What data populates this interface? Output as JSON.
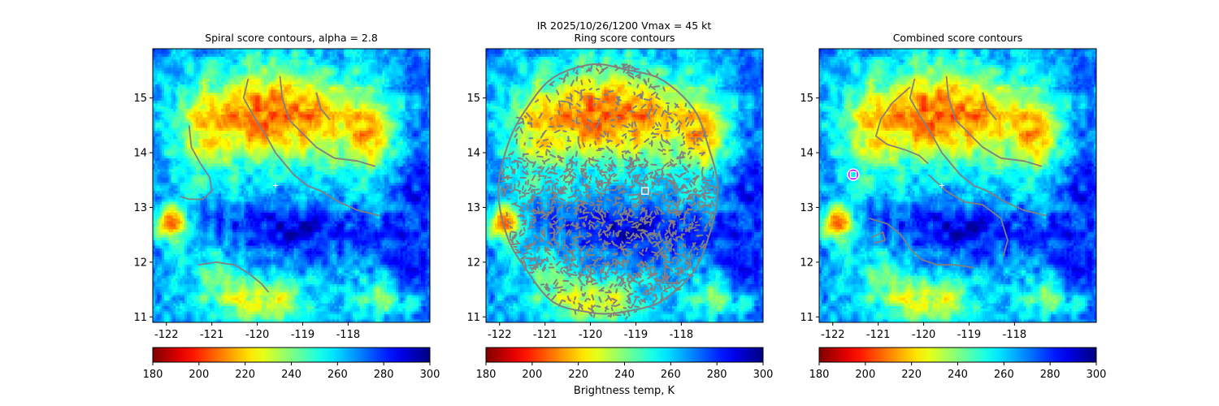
{
  "suptitle": {
    "line1": "IR  2025/10/26/1200    Vmax = 45 kt"
  },
  "colorbar_label": "Brightness temp, K",
  "colors": {
    "contour": "#808080",
    "marker": "#ffffff",
    "marker_ring": "#ff00ff"
  },
  "colormap": {
    "name": "jet_r",
    "vmin": 180,
    "vmax": 300
  },
  "chart_data": [
    {
      "type": "heatmap",
      "title": "Spiral score contours, alpha =  2.8",
      "xlim": [
        -122.3,
        -116.2
      ],
      "ylim": [
        10.9,
        15.9
      ],
      "xticks": [
        "-122",
        "-121",
        "-120",
        "-119",
        "-118"
      ],
      "xtick_values": [
        -122,
        -121,
        -120,
        -119,
        -118
      ],
      "yticks": [
        "11",
        "12",
        "13",
        "14",
        "15"
      ],
      "ytick_values": [
        11,
        12,
        13,
        14,
        15
      ],
      "colorbar_ticks": [
        "180",
        "200",
        "220",
        "240",
        "260",
        "280",
        "300"
      ],
      "colorbar_tick_values": [
        180,
        200,
        220,
        240,
        260,
        280,
        300
      ],
      "center_marker": {
        "x": -119.6,
        "y": 13.4
      },
      "contours": [
        [
          [
            -120.2,
            15.35
          ],
          [
            -120.3,
            15.0
          ],
          [
            -120.1,
            14.7
          ],
          [
            -119.8,
            14.3
          ],
          [
            -119.6,
            14.0
          ],
          [
            -119.4,
            13.8
          ],
          [
            -119.2,
            13.6
          ],
          [
            -118.9,
            13.4
          ],
          [
            -118.6,
            13.3
          ],
          [
            -118.2,
            13.1
          ],
          [
            -117.8,
            12.95
          ],
          [
            -117.3,
            12.85
          ]
        ],
        [
          [
            -119.5,
            15.4
          ],
          [
            -119.45,
            15.0
          ],
          [
            -119.3,
            14.6
          ],
          [
            -119.0,
            14.35
          ],
          [
            -118.7,
            14.1
          ],
          [
            -118.3,
            13.9
          ],
          [
            -117.8,
            13.85
          ],
          [
            -117.4,
            13.75
          ]
        ],
        [
          [
            -118.7,
            15.1
          ],
          [
            -118.6,
            14.8
          ],
          [
            -118.4,
            14.6
          ]
        ],
        [
          [
            -121.5,
            14.5
          ],
          [
            -121.45,
            14.1
          ],
          [
            -121.25,
            13.8
          ],
          [
            -121.05,
            13.55
          ],
          [
            -121.0,
            13.3
          ],
          [
            -121.2,
            13.15
          ],
          [
            -121.5,
            13.15
          ],
          [
            -121.7,
            13.2
          ]
        ],
        [
          [
            -121.3,
            11.95
          ],
          [
            -120.9,
            12.0
          ],
          [
            -120.5,
            11.95
          ],
          [
            -120.2,
            11.8
          ],
          [
            -119.9,
            11.6
          ],
          [
            -119.75,
            11.45
          ]
        ]
      ]
    },
    {
      "type": "heatmap",
      "title": "Ring score contours",
      "xlim": [
        -122.3,
        -116.2
      ],
      "ylim": [
        10.9,
        15.9
      ],
      "xticks": [
        "-122",
        "-121",
        "-120",
        "-119",
        "-118"
      ],
      "xtick_values": [
        -122,
        -121,
        -120,
        -119,
        -118
      ],
      "yticks": [
        "11",
        "12",
        "13",
        "14",
        "15"
      ],
      "ytick_values": [
        11,
        12,
        13,
        14,
        15
      ],
      "colorbar_ticks": [
        "180",
        "200",
        "220",
        "240",
        "260",
        "280",
        "300"
      ],
      "colorbar_tick_values": [
        180,
        200,
        220,
        240,
        260,
        280,
        300
      ],
      "center_marker": {
        "x": -118.8,
        "y": 13.3
      },
      "ring_region": {
        "cx": -119.6,
        "cy": 13.3,
        "r": 2.35
      },
      "contours": []
    },
    {
      "type": "heatmap",
      "title": "Combined score contours",
      "xlim": [
        -122.3,
        -116.2
      ],
      "ylim": [
        10.9,
        15.9
      ],
      "xticks": [
        "-122",
        "-121",
        "-120",
        "-119",
        "-118"
      ],
      "xtick_values": [
        -122,
        -121,
        -120,
        -119,
        -118
      ],
      "yticks": [
        "11",
        "12",
        "13",
        "14",
        "15"
      ],
      "ytick_values": [
        11,
        12,
        13,
        14,
        15
      ],
      "colorbar_ticks": [
        "180",
        "200",
        "220",
        "240",
        "260",
        "280",
        "300"
      ],
      "colorbar_tick_values": [
        180,
        200,
        220,
        240,
        260,
        280,
        300
      ],
      "center_marker": {
        "x": -119.6,
        "y": 13.4
      },
      "best_fix_marker": {
        "x": -121.55,
        "y": 13.6
      },
      "contours": [
        [
          [
            -120.2,
            15.35
          ],
          [
            -120.3,
            15.0
          ],
          [
            -120.1,
            14.7
          ],
          [
            -119.8,
            14.3
          ],
          [
            -119.6,
            14.0
          ],
          [
            -119.4,
            13.8
          ],
          [
            -119.2,
            13.6
          ],
          [
            -118.9,
            13.4
          ],
          [
            -118.6,
            13.3
          ],
          [
            -118.2,
            13.1
          ],
          [
            -117.8,
            12.95
          ],
          [
            -117.3,
            12.85
          ]
        ],
        [
          [
            -119.5,
            15.4
          ],
          [
            -119.45,
            15.0
          ],
          [
            -119.3,
            14.6
          ],
          [
            -119.0,
            14.35
          ],
          [
            -118.7,
            14.1
          ],
          [
            -118.3,
            13.9
          ],
          [
            -117.8,
            13.85
          ],
          [
            -117.4,
            13.75
          ]
        ],
        [
          [
            -118.7,
            15.1
          ],
          [
            -118.6,
            14.8
          ],
          [
            -118.4,
            14.6
          ]
        ],
        [
          [
            -120.3,
            15.2
          ],
          [
            -120.7,
            14.9
          ],
          [
            -120.95,
            14.6
          ],
          [
            -121.05,
            14.3
          ],
          [
            -120.8,
            14.15
          ],
          [
            -120.4,
            14.05
          ],
          [
            -120.1,
            13.95
          ],
          [
            -119.9,
            13.8
          ]
        ],
        [
          [
            -121.2,
            12.8
          ],
          [
            -120.8,
            12.7
          ],
          [
            -120.5,
            12.5
          ],
          [
            -120.3,
            12.25
          ],
          [
            -120.05,
            12.05
          ],
          [
            -119.7,
            11.95
          ],
          [
            -119.3,
            11.95
          ],
          [
            -118.9,
            11.9
          ]
        ],
        [
          [
            -121.15,
            12.45
          ],
          [
            -120.9,
            12.55
          ],
          [
            -120.85,
            12.4
          ],
          [
            -121.1,
            12.35
          ]
        ],
        [
          [
            -119.9,
            13.6
          ],
          [
            -119.5,
            13.3
          ],
          [
            -119.1,
            13.1
          ],
          [
            -118.7,
            13.05
          ],
          [
            -118.3,
            12.8
          ],
          [
            -118.15,
            12.4
          ],
          [
            -118.25,
            12.1
          ]
        ]
      ]
    }
  ]
}
